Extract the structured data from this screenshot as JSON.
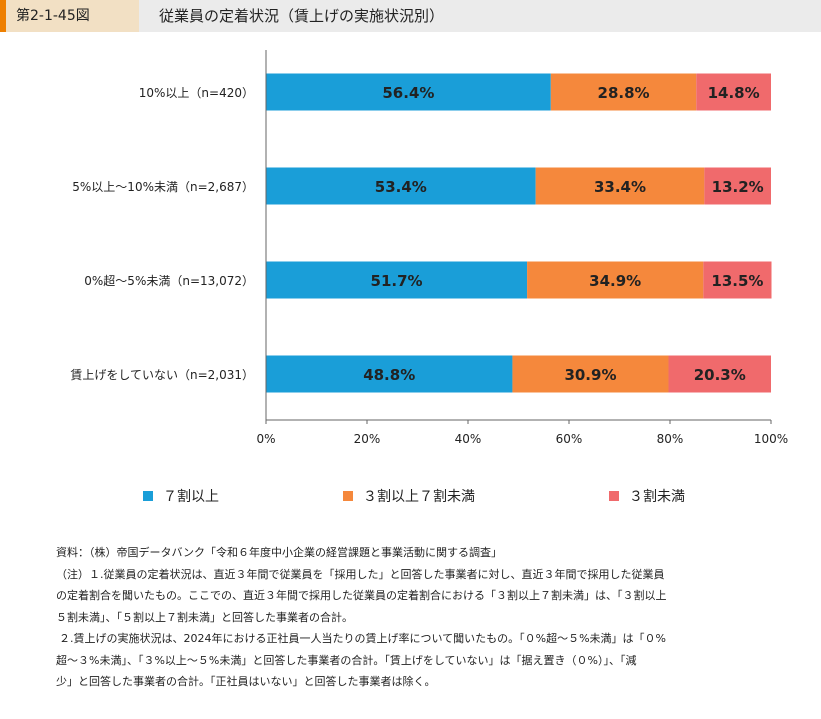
{
  "header": {
    "figure_number": "第2-1-45図",
    "title": "従業員の定着状況（賃上げの実施状況別）"
  },
  "colors": {
    "blue": "#1a9ed8",
    "orange": "#f5883c",
    "red": "#f06a6c"
  },
  "chart_data": {
    "type": "bar",
    "orientation": "horizontal",
    "stacked": true,
    "title": "従業員の定着状況（賃上げの実施状況別）",
    "categories": [
      "10%以上（n=420）",
      "5%以上～10%未満（n=2,687）",
      "0%超～5%未満（n=13,072）",
      "賃上げをしていない（n=2,031）"
    ],
    "series": [
      {
        "name": "７割以上",
        "color": "#1a9ed8",
        "values": [
          56.4,
          53.4,
          51.7,
          48.8
        ]
      },
      {
        "name": "３割以上７割未満",
        "color": "#f5883c",
        "values": [
          28.8,
          33.4,
          34.9,
          30.9
        ]
      },
      {
        "name": "３割未満",
        "color": "#f06a6c",
        "values": [
          14.8,
          13.2,
          13.5,
          20.3
        ]
      }
    ],
    "xlim": [
      0,
      100
    ],
    "xticks": [
      "0%",
      "20%",
      "40%",
      "60%",
      "80%",
      "100%"
    ],
    "xlabel": "",
    "ylabel": "",
    "legend_position": "bottom"
  },
  "legend": [
    {
      "label": "７割以上",
      "color": "#1a9ed8"
    },
    {
      "label": "３割以上７割未満",
      "color": "#f5883c"
    },
    {
      "label": "３割未満",
      "color": "#f06a6c"
    }
  ],
  "notes": {
    "source": "資料：（株）帝国データバンク「令和６年度中小企業の経営課題と事業活動に関する調査」",
    "note1_line1": "（注）１.従業員の定着状況は、直近３年間で従業員を「採用した」と回答した事業者に対し、直近３年間で採用した従業員",
    "note1_line2": "の定着割合を聞いたもの。ここでの、直近３年間で採用した従業員の定着割合における「３割以上７割未満」は、「３割以上",
    "note1_line3": "５割未満」、「５割以上７割未満」と回答した事業者の合計。",
    "note2_line1": "２.賃上げの実施状況は、2024年における正社員一人当たりの賃上げ率について聞いたもの。「０%超～５%未満」は「０%",
    "note2_line2": "超～３%未満」、「３%以上～５%未満」と回答した事業者の合計。「賃上げをしていない」は「据え置き（０%）」、「減",
    "note2_line3": "少」と回答した事業者の合計。「正社員はいない」と回答した事業者は除く。"
  }
}
